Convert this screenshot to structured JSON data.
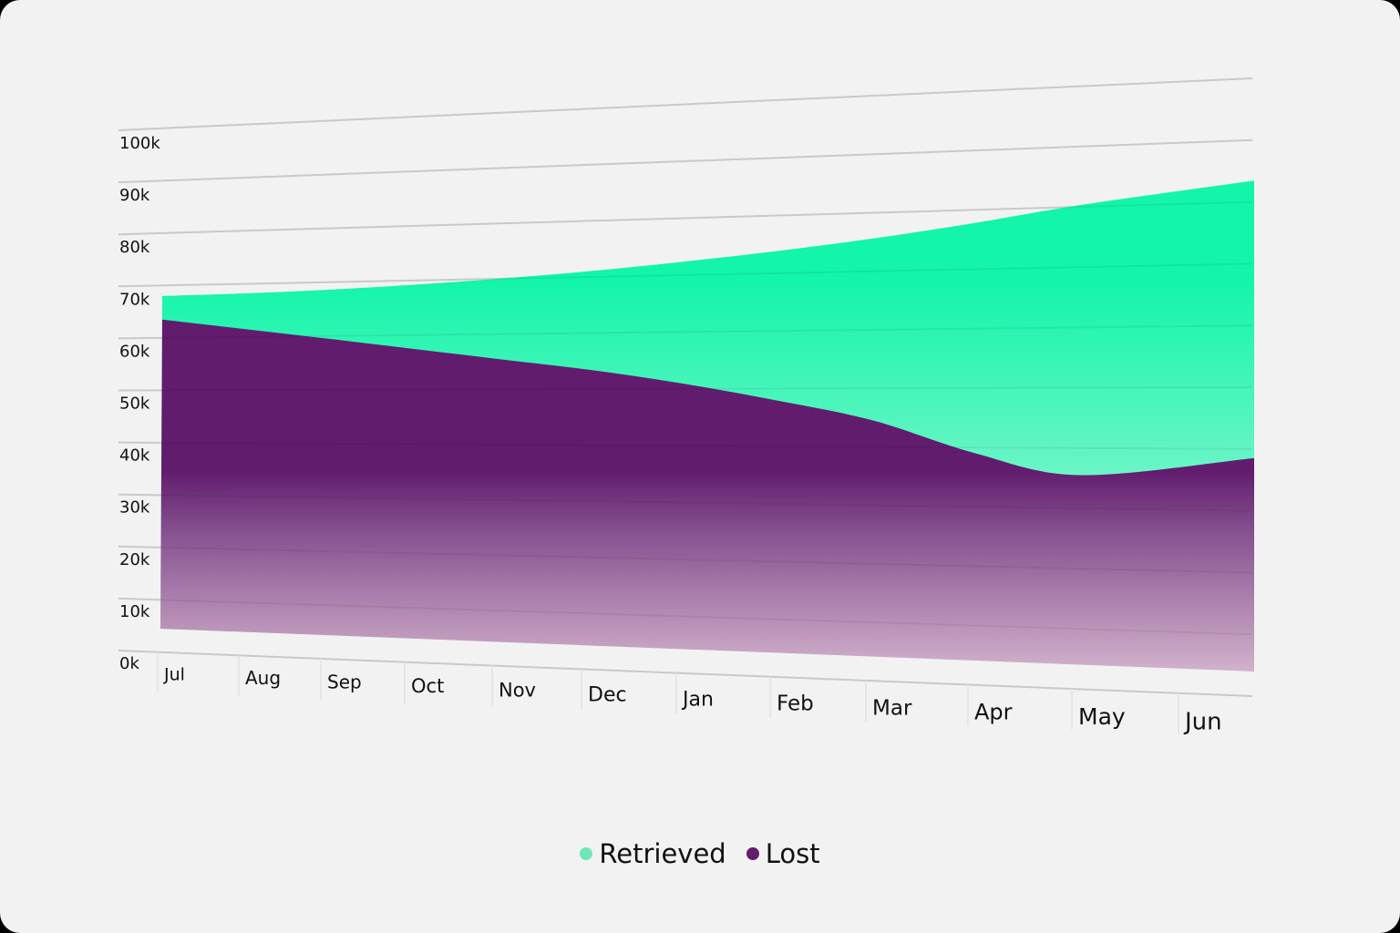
{
  "chart_data": {
    "type": "area",
    "title": "",
    "xlabel": "",
    "ylabel": "",
    "categories": [
      "Jul",
      "Aug",
      "Sep",
      "Oct",
      "Nov",
      "Dec",
      "Jan",
      "Feb",
      "Mar",
      "Apr",
      "May",
      "Jun"
    ],
    "y_ticks": [
      "0k",
      "10k",
      "20k",
      "30k",
      "40k",
      "50k",
      "60k",
      "70k",
      "80k",
      "90k",
      "100k"
    ],
    "ylim": [
      0,
      100000
    ],
    "stacked": false,
    "grid": true,
    "legend_position": "bottom-center",
    "perspective": "3D tilted plane, right side nearer",
    "series": [
      {
        "name": "Retrieved",
        "color": "#14f5a8",
        "legend_color": "#6ee7b7",
        "values": [
          68000,
          68200,
          68600,
          69200,
          70000,
          71000,
          72300,
          73800,
          75600,
          77800,
          80300,
          83400
        ]
      },
      {
        "name": "Lost",
        "color": "#621c6e",
        "legend_color": "#621c6e",
        "values": [
          63500,
          61500,
          59500,
          57500,
          55500,
          53500,
          51000,
          48000,
          44500,
          39000,
          35500,
          38500
        ]
      }
    ]
  },
  "legend": {
    "items": [
      {
        "label": "Retrieved",
        "color": "#6ee7b7"
      },
      {
        "label": "Lost",
        "color": "#621c6e"
      }
    ]
  },
  "colors": {
    "background": "#f2f2f2",
    "grid": "#d6d6d6",
    "retrieved_top": "#12f5aa",
    "retrieved_bottom": "#c6f5e3",
    "lost_top": "#621c6e",
    "lost_bottom": "#d2b2cc"
  }
}
